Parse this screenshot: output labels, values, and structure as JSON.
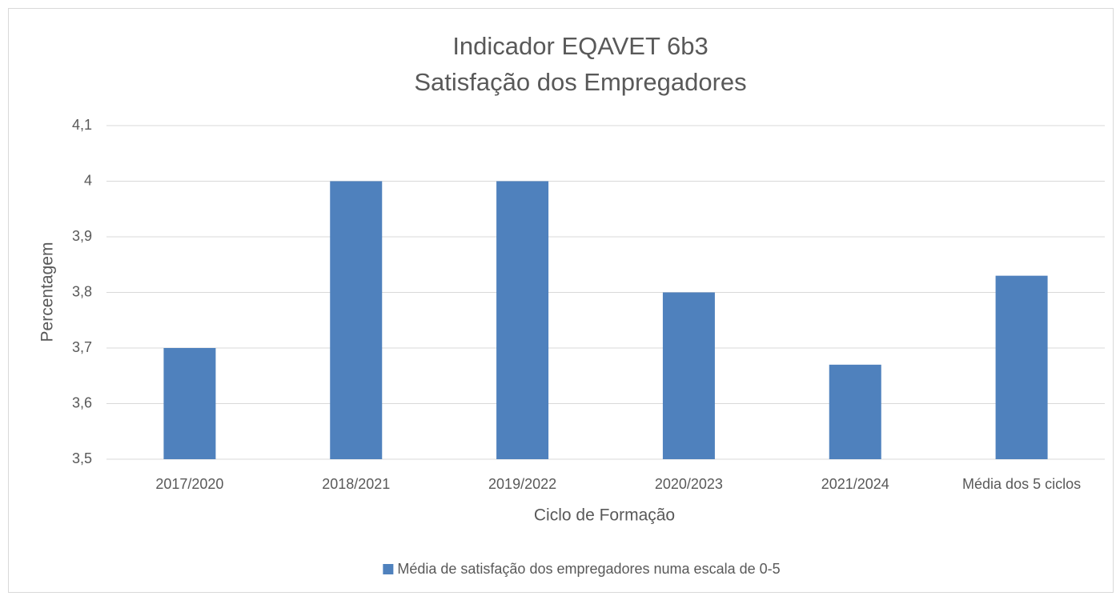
{
  "chart_data": {
    "type": "bar",
    "title": "Indicador EQAVET 6b3",
    "subtitle": "Satisfação dos Empregadores",
    "x_label": "Ciclo de Formação",
    "y_label": "Percentagem",
    "categories": [
      "2017/2020",
      "2018/2021",
      "2019/2022",
      "2020/2023",
      "2021/2024",
      "Média dos 5 ciclos"
    ],
    "series": [
      {
        "name": "Média de satisfação dos empregadores numa escala de 0-5",
        "color": "#4f81bd",
        "values": [
          3.7,
          4.0,
          4.0,
          3.8,
          3.67,
          3.83
        ]
      }
    ],
    "ylim": [
      3.5,
      4.1
    ],
    "yticks": [
      {
        "value": 3.5,
        "label": "3,5"
      },
      {
        "value": 3.6,
        "label": "3,6"
      },
      {
        "value": 3.7,
        "label": "3,7"
      },
      {
        "value": 3.8,
        "label": "3,8"
      },
      {
        "value": 3.9,
        "label": "3,9"
      },
      4,
      {
        "value": 4.1,
        "label": "4,1"
      }
    ],
    "grid": true,
    "legend": "bottom"
  }
}
